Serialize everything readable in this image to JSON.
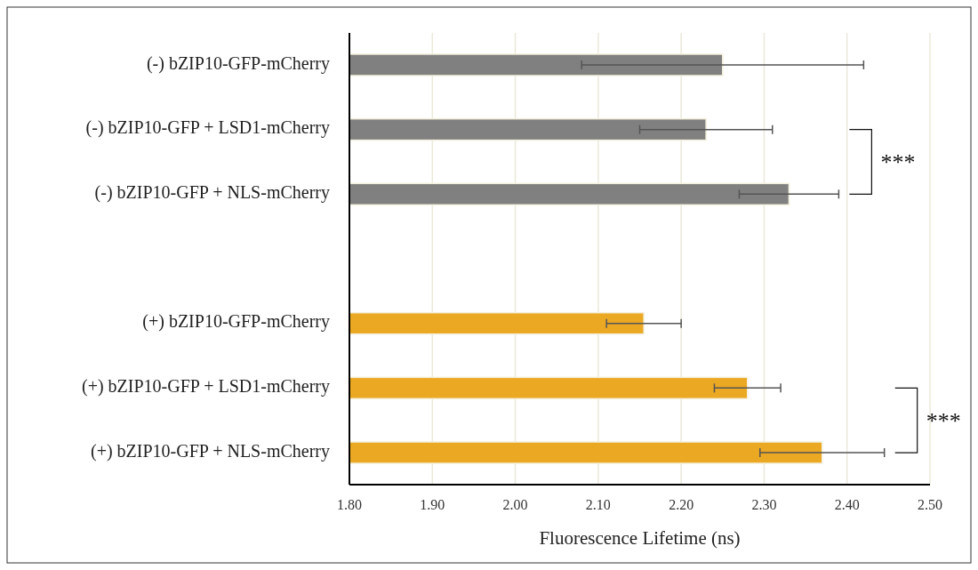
{
  "chart_data": {
    "type": "bar",
    "orientation": "horizontal",
    "xlabel": "Fluorescence Lifetime (ns)",
    "categories": [
      "(-) bZIP10-GFP-mCherry",
      "(-) bZIP10-GFP + LSD1-mCherry",
      "(-) bZIP10-GFP + NLS-mCherry",
      null,
      "(+) bZIP10-GFP-mCherry",
      "(+) bZIP10-GFP + LSD1-mCherry",
      "(+) bZIP10-GFP + NLS-mCherry"
    ],
    "values": [
      2.25,
      2.23,
      2.33,
      null,
      2.155,
      2.28,
      2.37
    ],
    "errors": [
      0.17,
      0.08,
      0.06,
      null,
      0.045,
      0.04,
      0.075
    ],
    "colors": [
      "#808080",
      "#808080",
      "#808080",
      null,
      "#eba823",
      "#eba823",
      "#eba823"
    ],
    "xlim": [
      1.8,
      2.5
    ],
    "xticks": [
      {
        "value": 1.8,
        "label": "1.80"
      },
      {
        "value": 1.9,
        "label": "1.90"
      },
      {
        "value": 2.0,
        "label": "2.00"
      },
      {
        "value": 2.1,
        "label": "2.10"
      },
      {
        "value": 2.2,
        "label": "2.20"
      },
      {
        "value": 2.3,
        "label": "2.30"
      },
      {
        "value": 2.4,
        "label": "2.40"
      },
      {
        "value": 2.5,
        "label": "2.50"
      }
    ],
    "grid": "x",
    "annotations": [
      "***",
      "***"
    ]
  }
}
